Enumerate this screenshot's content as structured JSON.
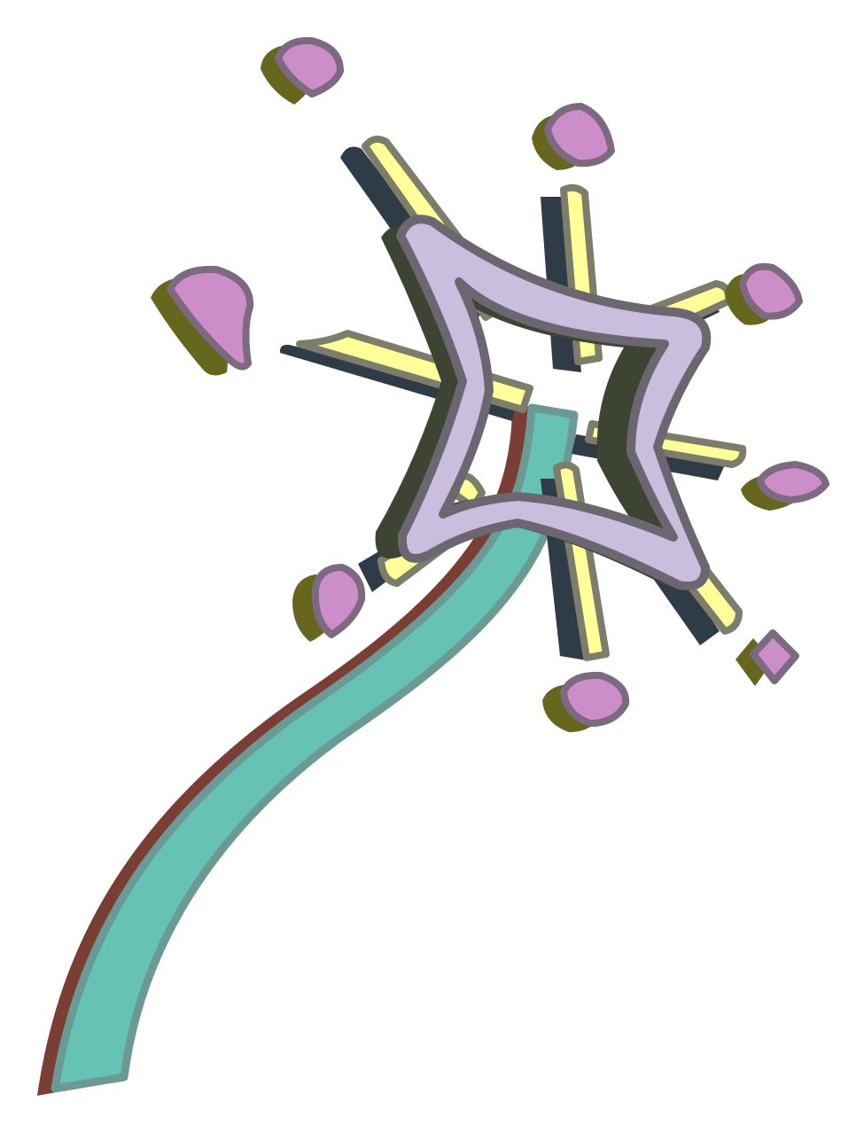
{
  "illustration": {
    "subject": "magic-wand",
    "colors": {
      "background": "#ffffff",
      "handle_fill": "#66c2b5",
      "handle_outline": "#6a9a93",
      "handle_shadow": "#7a3e34",
      "star_fill": "#c9bede",
      "star_outline": "#6b6670",
      "star_shadow": "#3e4434",
      "ray_fill": "#ffff99",
      "ray_outline": "#7d7d6c",
      "ray_shadow": "#2f3b47",
      "sparkle_fill": "#cc8ec9",
      "sparkle_outline": "#7d6a80",
      "sparkle_shadow": "#66661e"
    }
  }
}
